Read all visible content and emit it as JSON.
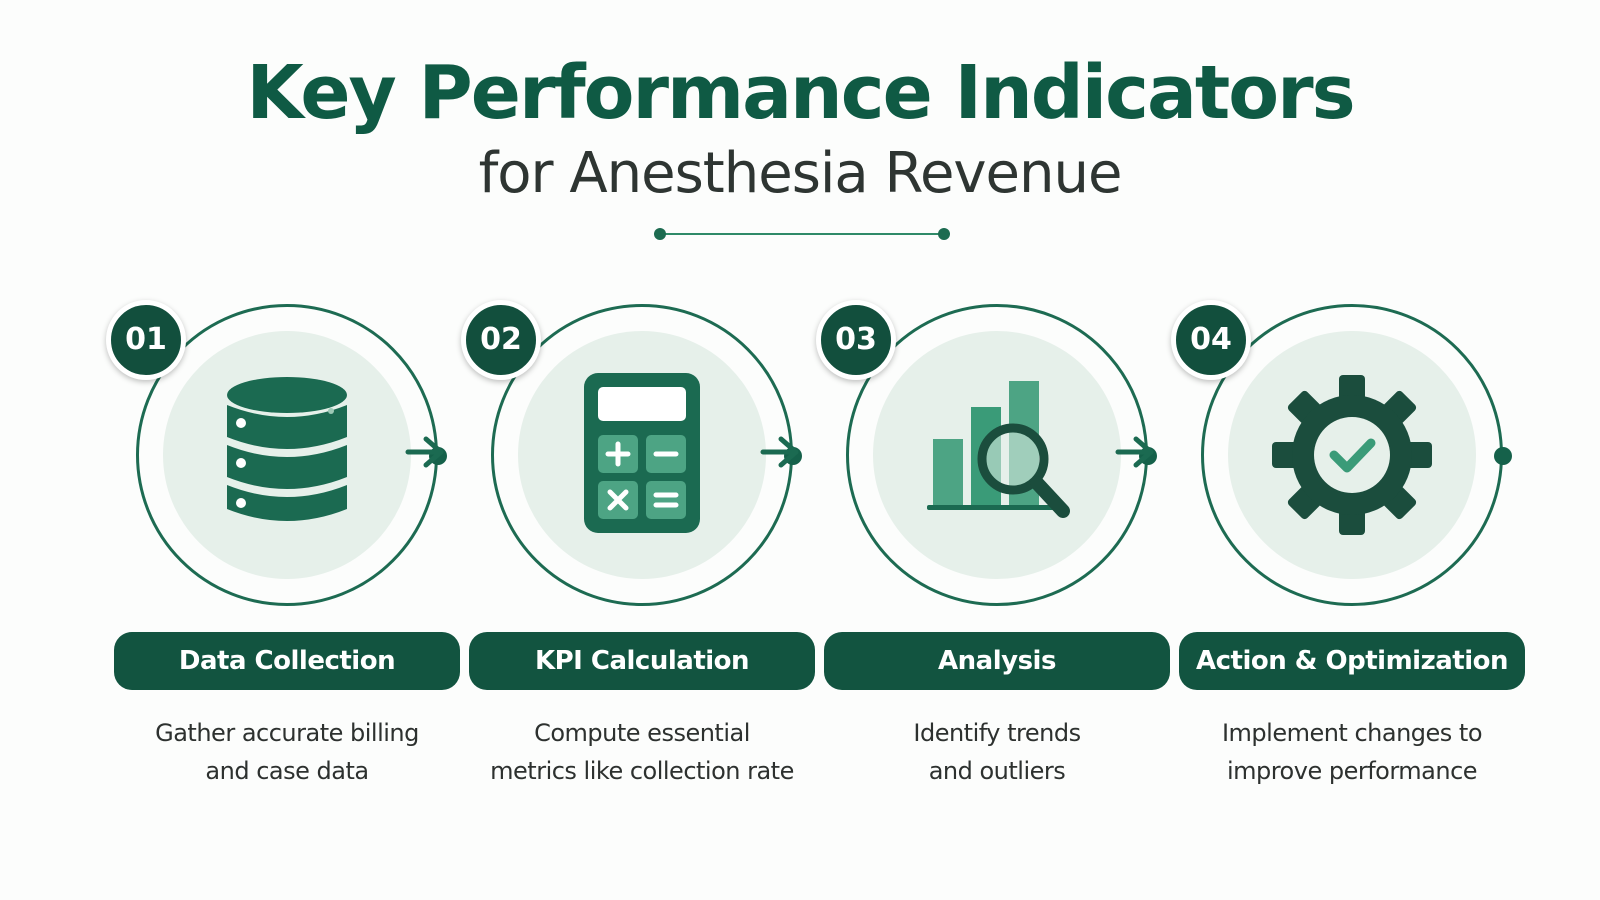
{
  "header": {
    "title": "Key Performance Indicators",
    "subtitle": "for Anesthesia Revenue"
  },
  "colors": {
    "primary_dark": "#125440",
    "primary": "#1d6b52",
    "accent": "#3a9b78",
    "circle_fill": "#e6f0ea"
  },
  "steps": [
    {
      "number": "01",
      "title": "Data Collection",
      "desc_line1": "Gather accurate billing",
      "desc_line2": "and case data",
      "icon": "database-icon"
    },
    {
      "number": "02",
      "title": "KPI Calculation",
      "desc_line1": "Compute essential",
      "desc_line2": "metrics like collection rate",
      "icon": "calculator-icon"
    },
    {
      "number": "03",
      "title": "Analysis",
      "desc_line1": "Identify trends",
      "desc_line2": "and outliers",
      "icon": "bar-chart-magnifier-icon"
    },
    {
      "number": "04",
      "title": "Action & Optimization",
      "desc_line1": "Implement changes to",
      "desc_line2": "improve performance",
      "icon": "gear-check-icon"
    }
  ]
}
